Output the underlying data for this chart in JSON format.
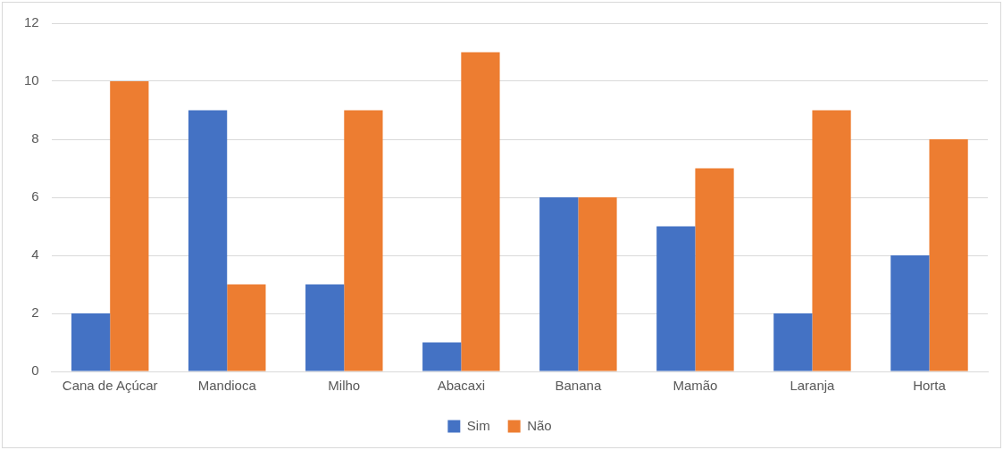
{
  "chart_data": {
    "type": "bar",
    "categories": [
      "Cana de Açúcar",
      "Mandioca",
      "Milho",
      "Abacaxi",
      "Banana",
      "Mamão",
      "Laranja",
      "Horta"
    ],
    "series": [
      {
        "name": "Sim",
        "color": "#4472c4",
        "values": [
          2,
          9,
          3,
          1,
          6,
          5,
          2,
          4
        ]
      },
      {
        "name": "Não",
        "color": "#ed7d31",
        "values": [
          10,
          3,
          9,
          11,
          6,
          7,
          9,
          8
        ]
      }
    ],
    "ylim": [
      0,
      12
    ],
    "yticks": [
      0,
      2,
      4,
      6,
      8,
      10,
      12
    ],
    "grid": "y",
    "legend": "bottom"
  }
}
